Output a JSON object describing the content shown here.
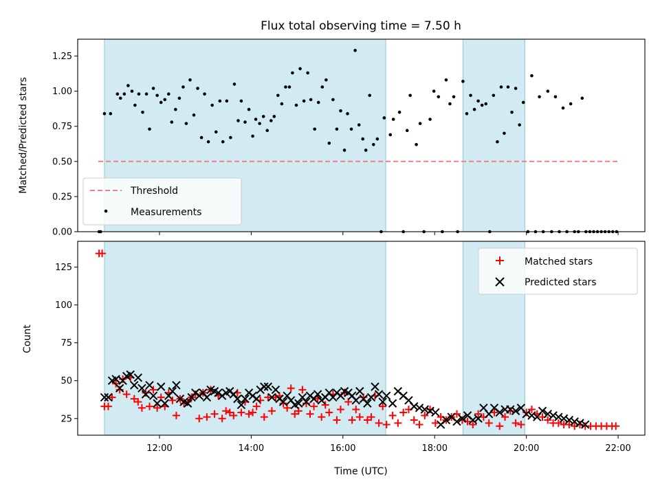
{
  "chart_data": {
    "type": "scatter",
    "title": "Flux total observing time = 7.50 h",
    "xlabel": "Time (UTC)",
    "x_unit": "hours UTC",
    "xlim": [
      "10:13",
      "22:35"
    ],
    "xticks": [
      "12:00",
      "14:00",
      "16:00",
      "18:00",
      "20:00",
      "22:00"
    ],
    "shaded_intervals": [
      [
        "10:48",
        "16:56"
      ],
      [
        "18:37",
        "19:58"
      ]
    ],
    "shade_color": "#add8e6",
    "panels": [
      {
        "ylabel": "Matched/Predicted stars",
        "ylim": [
          0,
          1.37
        ],
        "yticks": [
          "0.00",
          "0.25",
          "0.50",
          "0.75",
          "1.00",
          "1.25"
        ],
        "grid": false,
        "legend_position": "lower-left",
        "threshold": {
          "name": "Threshold",
          "y": 0.5,
          "x_range": [
            "10:40",
            "22:00"
          ],
          "color": "#f08080",
          "style": "dashed"
        },
        "series": [
          {
            "name": "Measurements",
            "marker": "dot",
            "color": "#000000",
            "x": [
              "10:41",
              "10:43",
              "10:48",
              "10:56",
              "11:05",
              "11:09",
              "11:14",
              "11:19",
              "11:24",
              "11:28",
              "11:33",
              "11:38",
              "11:43",
              "11:47",
              "11:52",
              "11:57",
              "12:02",
              "12:07",
              "12:12",
              "12:16",
              "12:21",
              "12:26",
              "12:31",
              "12:35",
              "12:40",
              "12:45",
              "12:50",
              "12:55",
              "12:59",
              "13:04",
              "13:09",
              "13:14",
              "13:19",
              "13:23",
              "13:28",
              "13:33",
              "13:38",
              "13:43",
              "13:47",
              "13:52",
              "13:57",
              "14:02",
              "14:06",
              "14:11",
              "14:16",
              "14:21",
              "14:26",
              "14:30",
              "14:35",
              "14:40",
              "14:45",
              "14:50",
              "14:54",
              "14:59",
              "15:04",
              "15:09",
              "15:14",
              "15:18",
              "15:23",
              "15:28",
              "15:33",
              "15:38",
              "15:42",
              "15:47",
              "15:52",
              "15:57",
              "16:02",
              "16:06",
              "16:11",
              "16:16",
              "16:21",
              "16:26",
              "16:30",
              "16:35",
              "16:40",
              "16:45",
              "16:50",
              "16:54",
              "17:02",
              "17:06",
              "17:14",
              "17:19",
              "17:24",
              "17:28",
              "17:36",
              "17:41",
              "17:46",
              "17:54",
              "17:59",
              "18:05",
              "18:10",
              "18:15",
              "18:20",
              "18:25",
              "18:30",
              "18:37",
              "18:42",
              "18:47",
              "18:52",
              "18:57",
              "19:02",
              "19:07",
              "19:12",
              "19:17",
              "19:22",
              "19:27",
              "19:31",
              "19:36",
              "19:41",
              "19:46",
              "19:51",
              "19:56",
              "20:02",
              "20:07",
              "20:12",
              "20:17",
              "20:22",
              "20:28",
              "20:33",
              "20:38",
              "20:43",
              "20:48",
              "20:53",
              "20:58",
              "21:03",
              "21:08",
              "21:13",
              "21:18",
              "21:23",
              "21:28",
              "21:33",
              "21:38",
              "21:43",
              "21:48",
              "21:53",
              "21:58"
            ],
            "y": [
              0,
              0,
              0.84,
              0.84,
              0.98,
              0.95,
              0.98,
              1.04,
              1.0,
              0.9,
              0.98,
              0.85,
              0.98,
              0.73,
              1.02,
              0.97,
              0.92,
              0.94,
              0.98,
              0.78,
              0.87,
              0.95,
              1.03,
              0.77,
              1.08,
              0.83,
              1.02,
              0.67,
              0.98,
              0.64,
              0.9,
              0.71,
              0.93,
              0.64,
              0.93,
              0.67,
              1.05,
              0.79,
              0.93,
              0.78,
              0.87,
              0.68,
              0.8,
              0.77,
              0.82,
              0.72,
              0.79,
              0.82,
              0.97,
              0.91,
              1.03,
              1.03,
              1.13,
              0.9,
              1.16,
              0.93,
              1.13,
              0.94,
              0.73,
              0.92,
              1.03,
              1.08,
              0.63,
              0.94,
              0.73,
              0.86,
              0.58,
              0.84,
              0.73,
              1.29,
              0.76,
              0.66,
              0.58,
              0.97,
              0.62,
              0.66,
              0.0,
              0.81,
              0.69,
              0.8,
              0.85,
              0.0,
              0.72,
              0.97,
              0.62,
              0.77,
              0.0,
              0.8,
              1.0,
              0.96,
              0.0,
              1.08,
              0.91,
              0.96,
              0.0,
              1.07,
              0.84,
              0.97,
              0.87,
              0.93,
              0.9,
              0.91,
              0.0,
              0.97,
              0.64,
              1.03,
              0.7,
              1.03,
              0.85,
              1.02,
              0.76,
              0.92,
              0.0,
              1.11,
              0.0,
              0.96,
              0.0,
              1.0,
              0.0,
              0.96,
              0.0,
              0.88,
              0.0,
              0.91,
              0.0,
              0.0,
              0.95,
              0.0,
              0.0,
              0.0,
              0.0,
              0.0,
              0.0,
              0.0,
              0.0,
              0.0
            ]
          }
        ]
      },
      {
        "ylabel": "Count",
        "ylim": [
          14,
          142
        ],
        "yticks": [
          "25",
          "50",
          "75",
          "100",
          "125"
        ],
        "grid": false,
        "legend_position": "top-right",
        "series": [
          {
            "name": "Matched stars",
            "marker": "plus",
            "color": "#ff0000",
            "x": [
              "10:41",
              "10:45",
              "10:48",
              "10:53",
              "10:58",
              "11:03",
              "11:08",
              "11:12",
              "11:17",
              "11:22",
              "11:27",
              "11:32",
              "11:37",
              "11:42",
              "11:47",
              "11:52",
              "11:57",
              "12:02",
              "12:07",
              "12:12",
              "12:17",
              "12:22",
              "12:27",
              "12:32",
              "12:37",
              "12:42",
              "12:47",
              "12:52",
              "12:57",
              "13:02",
              "13:07",
              "13:12",
              "13:17",
              "13:22",
              "13:27",
              "13:32",
              "13:37",
              "13:42",
              "13:47",
              "13:52",
              "13:57",
              "14:02",
              "14:07",
              "14:12",
              "14:17",
              "14:22",
              "14:27",
              "14:32",
              "14:37",
              "14:42",
              "14:47",
              "14:52",
              "14:57",
              "15:02",
              "15:07",
              "15:12",
              "15:17",
              "15:22",
              "15:27",
              "15:32",
              "15:37",
              "15:42",
              "15:47",
              "15:52",
              "15:57",
              "16:02",
              "16:07",
              "16:12",
              "16:17",
              "16:22",
              "16:27",
              "16:32",
              "16:37",
              "16:42",
              "16:47",
              "16:52",
              "16:57",
              "17:05",
              "17:12",
              "17:19",
              "17:26",
              "17:33",
              "17:40",
              "17:47",
              "17:54",
              "18:01",
              "18:08",
              "18:15",
              "18:22",
              "18:29",
              "18:36",
              "18:43",
              "18:50",
              "18:57",
              "19:04",
              "19:11",
              "19:18",
              "19:25",
              "19:32",
              "19:39",
              "19:46",
              "19:53",
              "20:00",
              "20:07",
              "20:14",
              "20:21",
              "20:28",
              "20:35",
              "20:42",
              "20:49",
              "20:56",
              "21:03",
              "21:10",
              "21:17",
              "21:24",
              "21:31",
              "21:38",
              "21:45",
              "21:52",
              "21:57"
            ],
            "y": [
              134,
              134,
              33,
              33,
              39,
              48,
              44,
              51,
              41,
              52,
              38,
              36,
              32,
              42,
              33,
              44,
              32,
              39,
              33,
              42,
              37,
              27,
              38,
              35,
              36,
              39,
              41,
              25,
              42,
              26,
              44,
              28,
              40,
              25,
              30,
              29,
              27,
              42,
              29,
              36,
              28,
              29,
              33,
              37,
              26,
              39,
              30,
              39,
              40,
              35,
              32,
              45,
              28,
              30,
              44,
              35,
              28,
              33,
              38,
              26,
              34,
              29,
              41,
              24,
              31,
              42,
              36,
              24,
              31,
              26,
              39,
              24,
              26,
              40,
              22,
              33,
              21,
              27,
              22,
              29,
              31,
              24,
              21,
              27,
              31,
              22,
              26,
              24,
              26,
              28,
              24,
              23,
              21,
              28,
              26,
              22,
              29,
              20,
              26,
              30,
              22,
              21,
              29,
              31,
              28,
              26,
              24,
              22,
              22,
              21,
              21,
              20,
              21,
              20,
              20,
              20,
              20,
              20,
              20,
              20
            ]
          },
          {
            "name": "Predicted stars",
            "marker": "x",
            "color": "#000000",
            "x": [
              "10:48",
              "10:53",
              "10:58",
              "11:03",
              "11:08",
              "11:12",
              "11:17",
              "11:22",
              "11:27",
              "11:32",
              "11:37",
              "11:42",
              "11:47",
              "11:52",
              "11:57",
              "12:02",
              "12:07",
              "12:12",
              "12:17",
              "12:22",
              "12:27",
              "12:32",
              "12:37",
              "12:42",
              "12:47",
              "12:52",
              "12:57",
              "13:02",
              "13:07",
              "13:12",
              "13:17",
              "13:22",
              "13:27",
              "13:32",
              "13:37",
              "13:42",
              "13:47",
              "13:52",
              "13:57",
              "14:02",
              "14:07",
              "14:12",
              "14:17",
              "14:22",
              "14:27",
              "14:32",
              "14:37",
              "14:42",
              "14:47",
              "14:52",
              "14:57",
              "15:02",
              "15:07",
              "15:12",
              "15:17",
              "15:22",
              "15:27",
              "15:32",
              "15:37",
              "15:42",
              "15:47",
              "15:52",
              "15:57",
              "16:02",
              "16:07",
              "16:12",
              "16:17",
              "16:22",
              "16:27",
              "16:32",
              "16:37",
              "16:42",
              "16:47",
              "16:52",
              "16:57",
              "17:05",
              "17:12",
              "17:19",
              "17:26",
              "17:33",
              "17:40",
              "17:47",
              "17:54",
              "18:01",
              "18:08",
              "18:15",
              "18:22",
              "18:29",
              "18:36",
              "18:43",
              "18:50",
              "18:57",
              "19:04",
              "19:11",
              "19:18",
              "19:25",
              "19:32",
              "19:39",
              "19:46",
              "19:53",
              "20:00",
              "20:07",
              "20:14",
              "20:21",
              "20:28",
              "20:35",
              "20:42",
              "20:49",
              "20:56",
              "21:03",
              "21:10",
              "21:17"
            ],
            "y": [
              39,
              39,
              50,
              51,
              45,
              50,
              53,
              54,
              47,
              52,
              45,
              41,
              47,
              40,
              35,
              46,
              35,
              40,
              43,
              47,
              38,
              36,
              35,
              39,
              42,
              40,
              42,
              39,
              44,
              43,
              42,
              40,
              42,
              43,
              41,
              38,
              34,
              38,
              42,
              40,
              38,
              44,
              46,
              46,
              39,
              44,
              38,
              36,
              40,
              37,
              34,
              35,
              39,
              36,
              40,
              38,
              41,
              37,
              39,
              42,
              39,
              42,
              40,
              43,
              42,
              40,
              37,
              43,
              38,
              35,
              39,
              46,
              41,
              36,
              40,
              35,
              43,
              40,
              37,
              33,
              32,
              31,
              30,
              29,
              21,
              24,
              26,
              23,
              25,
              27,
              24,
              25,
              32,
              28,
              32,
              29,
              31,
              31,
              30,
              32,
              28,
              27,
              26,
              30,
              28,
              27,
              26,
              25,
              24,
              23,
              22,
              21
            ]
          }
        ]
      }
    ]
  }
}
